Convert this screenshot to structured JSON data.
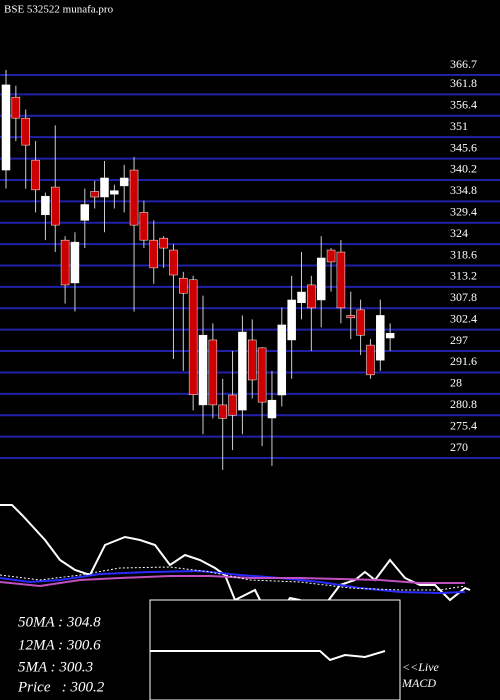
{
  "chart_data": {
    "type": "candlestick",
    "title": "BSE 532522 munafa.pro",
    "ylim": [
      270,
      366.7
    ],
    "yticks": [
      366.7,
      361.8,
      356.4,
      351,
      345.6,
      340.2,
      334.8,
      329.4,
      324,
      318.6,
      313.2,
      307.8,
      302.4,
      297,
      291.6,
      {
        "value": 286.2,
        "label": "28"
      },
      280.8,
      275.4,
      270
    ],
    "grid": true,
    "up_color": "#ffffff",
    "down_color": "#cc0000",
    "open": [
      342.7,
      361.1,
      355.8,
      345.2,
      331.4,
      338.4,
      325,
      314.2,
      330,
      337.3,
      335.9,
      336.6,
      338.7,
      342.7,
      332,
      325,
      325.5,
      322.5,
      315.4,
      315,
      283.4,
      299.8,
      283.4,
      285.9,
      282.1,
      299.8,
      297.8,
      280.1,
      285.9,
      299.8,
      309.2,
      313.7,
      309.9,
      322.5,
      322,
      306,
      307.4,
      298.5,
      294.7,
      300.3
    ],
    "high": [
      368,
      364,
      358,
      350,
      337,
      354,
      326,
      327,
      338,
      340,
      345,
      339,
      344,
      346,
      335,
      330,
      326,
      324,
      317,
      316,
      311,
      304,
      290,
      297,
      306,
      305,
      298,
      292,
      308,
      316,
      322,
      316,
      326,
      323,
      325,
      312,
      310,
      300,
      310,
      304
    ],
    "low": [
      338,
      350,
      338,
      332,
      325,
      322,
      309,
      307,
      323,
      333,
      327,
      333,
      332,
      307,
      323,
      314,
      318,
      295,
      292,
      282,
      276,
      280,
      267,
      272,
      276,
      285,
      273,
      268,
      283,
      290,
      305,
      297,
      303,
      312,
      304,
      300,
      296,
      290,
      292,
      297
    ],
    "close": [
      364.2,
      355.8,
      349,
      337.7,
      336.1,
      328.8,
      313.7,
      324.5,
      334,
      335.9,
      340.7,
      337.5,
      340.7,
      328.8,
      325,
      318,
      323,
      316.2,
      311.6,
      286,
      301,
      283.4,
      280,
      280.8,
      301.8,
      289.7,
      284.1,
      284.6,
      303.6,
      309.9,
      311.9,
      307.9,
      320.5,
      319.5,
      307.9,
      305.4,
      301,
      291,
      306,
      301.5
    ],
    "annotations": [
      "50MA : 304.8",
      "12MA : 300.6",
      "5MA : 300.3",
      "Price   : 300.2"
    ],
    "macd_label": [
      "<<Live",
      "MACD"
    ]
  }
}
